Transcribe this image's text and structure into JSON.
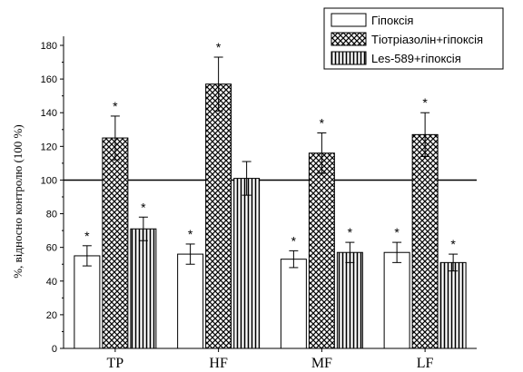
{
  "chart_data": {
    "type": "bar",
    "categories": [
      "TP",
      "HF",
      "MF",
      "LF"
    ],
    "series": [
      {
        "name": "Гіпоксія",
        "pattern": "plain",
        "values": [
          55,
          56,
          53,
          57
        ],
        "errors": [
          6,
          6,
          5,
          6
        ],
        "significant": [
          true,
          true,
          true,
          true
        ]
      },
      {
        "name": "Тіотріазолін+гіпоксія",
        "pattern": "crosshatch",
        "values": [
          125,
          157,
          116,
          127
        ],
        "errors": [
          13,
          16,
          12,
          13
        ],
        "significant": [
          true,
          true,
          true,
          true
        ]
      },
      {
        "name": "Les-589+гіпоксія",
        "pattern": "vertical",
        "values": [
          71,
          101,
          57,
          51
        ],
        "errors": [
          7,
          10,
          6,
          5
        ],
        "significant": [
          true,
          false,
          true,
          true
        ]
      }
    ],
    "significance_marker": "*",
    "reference_line": 100,
    "ylabel": "%, відносно контролю (100 %)",
    "xlabel": "",
    "ylim": [
      0,
      180
    ],
    "yticks": [
      "0",
      "20",
      "40",
      "60",
      "80",
      "100",
      "120",
      "140",
      "160",
      "180"
    ],
    "legend_position": "top-right",
    "colors": {
      "bar_fill": "#ffffff",
      "stroke": "#000000"
    }
  }
}
